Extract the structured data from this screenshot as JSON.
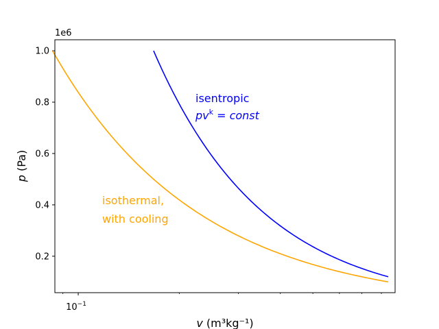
{
  "chart_data": {
    "type": "line",
    "xscale": "log",
    "xlim": [
      0.0852,
      0.879
    ],
    "ylim": [
      58000,
      1043000
    ],
    "y_offset_label": "1e6",
    "x_ticks": [
      {
        "value": 0.1,
        "label": "10",
        "exp": "−1"
      }
    ],
    "y_ticks": [
      {
        "value": 200000,
        "label": "0.2"
      },
      {
        "value": 400000,
        "label": "0.4"
      },
      {
        "value": 600000,
        "label": "0.6"
      },
      {
        "value": 800000,
        "label": "0.8"
      },
      {
        "value": 1000000,
        "label": "1.0"
      }
    ],
    "xlabel": {
      "var": "v",
      "text": "(m³kg⁻¹)"
    },
    "ylabel": {
      "var": "p",
      "text": "(Pa)"
    },
    "series": [
      {
        "color": "#0000ff",
        "x": [
          0.1677,
          0.18,
          0.2,
          0.22,
          0.25,
          0.28,
          0.32,
          0.36,
          0.4,
          0.45,
          0.5,
          0.55,
          0.6,
          0.65,
          0.7,
          0.75,
          0.8,
          0.8384
        ],
        "y": [
          1000000,
          905700,
          786700,
          694600,
          591600,
          511800,
          432500,
          372900,
          326500,
          281300,
          245400,
          216300,
          192300,
          172300,
          155400,
          140900,
          128300,
          120000
        ]
      },
      {
        "color": "#ffa500",
        "x": [
          0.08384,
          0.09,
          0.1,
          0.12,
          0.15,
          0.2,
          0.25,
          0.3,
          0.4,
          0.5,
          0.6,
          0.7,
          0.8384
        ],
        "y": [
          1000000,
          931600,
          838400,
          698700,
          558900,
          419200,
          335400,
          279500,
          209600,
          167700,
          139700,
          119800,
          100000
        ]
      }
    ],
    "annotations": [
      {
        "lines": [
          "isentropic"
        ],
        "formula": {
          "base": "pv",
          "sup": "k",
          "rest": " = const"
        },
        "color": "#0000ff"
      },
      {
        "lines": [
          "isothermal,",
          "with cooling"
        ],
        "color": "#ffa500"
      }
    ]
  }
}
